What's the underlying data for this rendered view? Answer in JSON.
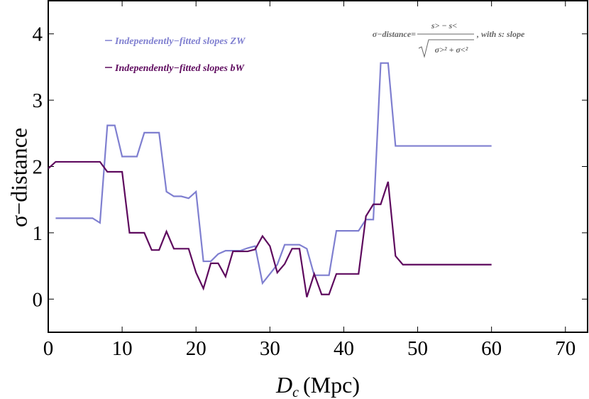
{
  "chart_data": {
    "type": "line",
    "y_label": "σ−distance",
    "x_label": {
      "symbol": "D",
      "subscript": "c",
      "unit": "(Mpc)"
    },
    "annotation": {
      "lhs": "σ−distance=",
      "numerator": "s> − s<",
      "denominator": "σ>² + σ<²",
      "suffix": ", with s: slope"
    },
    "xlim": [
      0,
      73
    ],
    "ylim": [
      -0.5,
      4.5
    ],
    "xticks": [
      0,
      10,
      20,
      30,
      40,
      50,
      60,
      70
    ],
    "yticks": [
      0,
      1,
      2,
      3,
      4
    ],
    "series": [
      {
        "name": "Independently−fitted slopes ZW",
        "color": "#7f7fd0",
        "x": [
          1,
          6,
          7,
          8,
          9,
          10,
          12,
          13,
          15,
          16,
          17,
          18,
          19,
          20,
          21,
          22,
          23,
          24,
          26,
          27,
          28,
          29,
          30,
          31,
          32,
          34,
          35,
          36,
          38,
          39,
          42,
          43,
          44,
          45,
          46,
          47,
          60
        ],
        "values": [
          1.22,
          1.22,
          1.15,
          2.62,
          2.62,
          2.15,
          2.15,
          2.51,
          2.51,
          1.62,
          1.55,
          1.55,
          1.52,
          1.62,
          0.57,
          0.57,
          0.68,
          0.73,
          0.73,
          0.77,
          0.8,
          0.24,
          0.38,
          0.52,
          0.82,
          0.82,
          0.76,
          0.36,
          0.36,
          1.03,
          1.03,
          1.2,
          1.2,
          3.56,
          3.56,
          2.31,
          2.31
        ]
      },
      {
        "name": "Independently−fitted slopes bW",
        "color": "#5e0a5e",
        "x": [
          0,
          1,
          7,
          8,
          10,
          11,
          13,
          14,
          15,
          16,
          17,
          19,
          20,
          21,
          22,
          23,
          24,
          25,
          27,
          28,
          29,
          30,
          31,
          32,
          33,
          34,
          35,
          36,
          37,
          38,
          39,
          42,
          43,
          44,
          45,
          46,
          47,
          48,
          60
        ],
        "values": [
          1.97,
          2.07,
          2.07,
          1.92,
          1.92,
          1.0,
          1.0,
          0.74,
          0.74,
          1.02,
          0.76,
          0.76,
          0.4,
          0.16,
          0.54,
          0.54,
          0.34,
          0.72,
          0.72,
          0.75,
          0.95,
          0.8,
          0.4,
          0.53,
          0.76,
          0.76,
          0.03,
          0.38,
          0.07,
          0.07,
          0.38,
          0.38,
          1.25,
          1.43,
          1.43,
          1.77,
          0.65,
          0.52,
          0.52
        ]
      }
    ]
  }
}
